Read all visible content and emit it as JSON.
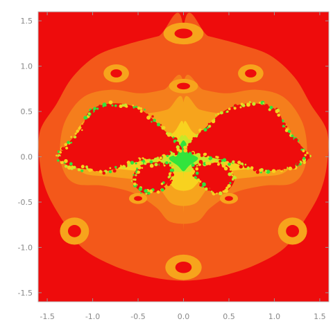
{
  "chart_data": {
    "type": "heatmap",
    "title": "",
    "xlabel": "",
    "ylabel": "",
    "xlim": [
      -1.6,
      1.6
    ],
    "ylim": [
      -1.6,
      1.6
    ],
    "x_ticks": [
      -1.5,
      -1.0,
      -0.5,
      0.0,
      0.5,
      1.0,
      1.5
    ],
    "y_ticks": [
      1.5,
      1.0,
      0.5,
      0.0,
      -0.5,
      -1.0,
      -1.5
    ],
    "x_tick_labels": [
      "-1.5",
      "-1.0",
      "-0.5",
      "0.0",
      "0.5",
      "1.0",
      "1.5"
    ],
    "y_tick_labels": [
      "1.5",
      "1.0",
      "0.5",
      "0.0",
      "-0.5",
      "-1.0",
      "-1.5"
    ],
    "grid": false,
    "legend": "none",
    "colors": {
      "background": "#ee0c0c",
      "outer_band": "#f3581a",
      "middle_band": "#f57e1c",
      "inner_band": "#f7a41c",
      "near_boundary": "#f8d21f",
      "boundary": "#c6e82a",
      "boundary_core": "#32e43c",
      "fractal_interior": "#ee0c0c"
    }
  }
}
